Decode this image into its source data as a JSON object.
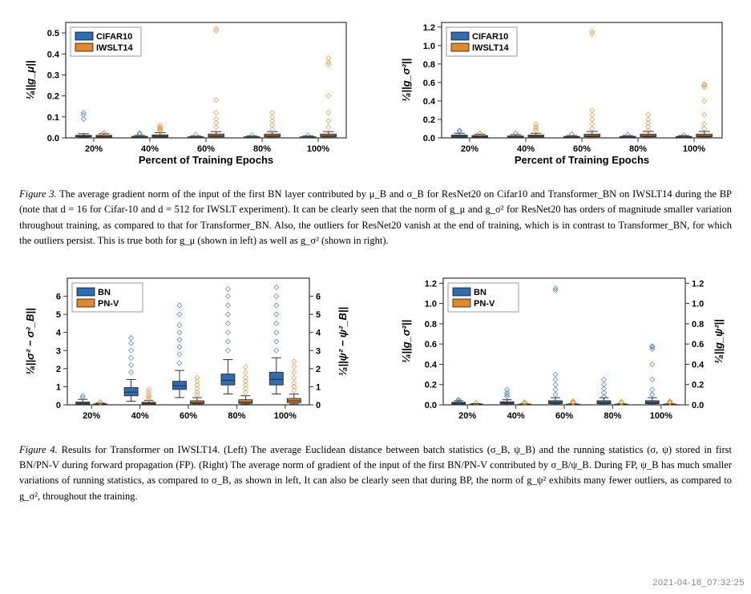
{
  "figure3": {
    "left": {
      "ylabel": "¹⁄ₐ||g_μ||",
      "xlabel": "Percent of Training Epochs",
      "ylim": [
        0,
        0.55
      ],
      "yticks": [
        0.0,
        0.1,
        0.2,
        0.3,
        0.4,
        0.5
      ],
      "categories": [
        "20%",
        "40%",
        "60%",
        "80%",
        "100%"
      ],
      "legend": [
        "CIFAR10",
        "IWSLT14"
      ],
      "colors": {
        "cifar": "#2f6db2",
        "iwslt": "#e08a2c",
        "border": "#333",
        "grid": "#bfbfbf"
      },
      "boxes": {
        "cifar": {
          "medians": [
            0.008,
            0.004,
            0.003,
            0.003,
            0.003
          ],
          "q1": [
            0.005,
            0.002,
            0.002,
            0.002,
            0.002
          ],
          "q3": [
            0.012,
            0.007,
            0.005,
            0.005,
            0.005
          ],
          "wlo": [
            0.002,
            0.001,
            0.001,
            0.001,
            0.001
          ],
          "whi": [
            0.02,
            0.012,
            0.009,
            0.009,
            0.009
          ],
          "out": [
            [
              0.09,
              0.11,
              0.12
            ],
            [
              0.018,
              0.022
            ],
            [
              0.015
            ],
            [
              0.013
            ],
            [
              0.012
            ]
          ]
        },
        "iwslt": {
          "medians": [
            0.007,
            0.008,
            0.01,
            0.01,
            0.01
          ],
          "q1": [
            0.004,
            0.004,
            0.005,
            0.005,
            0.005
          ],
          "q3": [
            0.012,
            0.014,
            0.018,
            0.018,
            0.018
          ],
          "wlo": [
            0.001,
            0.001,
            0.001,
            0.001,
            0.001
          ],
          "whi": [
            0.02,
            0.025,
            0.03,
            0.03,
            0.03
          ],
          "out": [
            [
              0.022,
              0.024
            ],
            [
              0.035,
              0.04,
              0.045,
              0.05,
              0.06
            ],
            [
              0.05,
              0.07,
              0.09,
              0.12,
              0.18,
              0.51,
              0.52
            ],
            [
              0.04,
              0.06,
              0.08,
              0.1,
              0.12
            ],
            [
              0.05,
              0.08,
              0.12,
              0.2,
              0.35,
              0.36,
              0.38
            ]
          ]
        }
      }
    },
    "right": {
      "ylabel": "¹⁄ₐ||g_σ²||",
      "xlabel": "Percent of Training Epochs",
      "ylim": [
        0,
        1.25
      ],
      "yticks": [
        0.0,
        0.2,
        0.4,
        0.6,
        0.8,
        1.0,
        1.2
      ],
      "categories": [
        "20%",
        "40%",
        "60%",
        "80%",
        "100%"
      ],
      "legend": [
        "CIFAR10",
        "IWSLT14"
      ],
      "colors": {
        "cifar": "#2f6db2",
        "iwslt": "#e08a2c",
        "border": "#333",
        "grid": "#bfbfbf"
      },
      "boxes": {
        "cifar": {
          "medians": [
            0.015,
            0.01,
            0.008,
            0.008,
            0.008
          ],
          "q1": [
            0.008,
            0.005,
            0.004,
            0.004,
            0.004
          ],
          "q3": [
            0.03,
            0.02,
            0.015,
            0.015,
            0.015
          ],
          "wlo": [
            0.002,
            0.002,
            0.002,
            0.002,
            0.002
          ],
          "whi": [
            0.05,
            0.035,
            0.025,
            0.025,
            0.025
          ],
          "out": [
            [
              0.08,
              0.07
            ],
            [
              0.05
            ],
            [
              0.04
            ],
            [
              0.035
            ],
            [
              0.03
            ]
          ]
        },
        "iwslt": {
          "medians": [
            0.015,
            0.018,
            0.022,
            0.022,
            0.022
          ],
          "q1": [
            0.008,
            0.01,
            0.012,
            0.012,
            0.012
          ],
          "q3": [
            0.025,
            0.03,
            0.04,
            0.04,
            0.04
          ],
          "wlo": [
            0.002,
            0.002,
            0.002,
            0.002,
            0.002
          ],
          "whi": [
            0.04,
            0.05,
            0.07,
            0.07,
            0.07
          ],
          "out": [
            [
              0.045,
              0.05
            ],
            [
              0.08,
              0.1,
              0.12,
              0.15
            ],
            [
              0.1,
              0.15,
              0.2,
              0.25,
              0.3,
              1.13,
              1.15
            ],
            [
              0.08,
              0.12,
              0.16,
              0.2,
              0.25
            ],
            [
              0.1,
              0.15,
              0.25,
              0.4,
              0.55,
              0.57,
              0.58
            ]
          ]
        }
      }
    },
    "caption_prefix": "Figure 3.",
    "caption": "The average gradient norm of the input of the first BN layer contributed by μ_B and σ_B for ResNet20 on Cifar10 and Transformer_BN on IWSLT14 during the BP (note that d = 16 for Cifar-10 and d = 512 for IWSLT experiment). It can be clearly seen that the norm of g_μ and g_σ² for ResNet20 has orders of magnitude smaller variation throughout training, as compared to that for Transformer_BN. Also, the outliers for ResNet20 vanish at the end of training, which is in contrast to Transformer_BN, for which the outliers persist. This is true both for g_μ (shown in left) as well as g_σ² (shown in right)."
  },
  "figure4": {
    "left": {
      "ylabel_left": "¹⁄ₐ||σ² − σ²_B||",
      "ylabel_right": "¹⁄ₐ||ψ² − ψ²_B||",
      "ylim": [
        0,
        7
      ],
      "yticks": [
        0,
        1,
        2,
        3,
        4,
        5,
        6
      ],
      "categories": [
        "20%",
        "40%",
        "60%",
        "80%",
        "100%"
      ],
      "legend": [
        "BN",
        "PN-V"
      ],
      "colors": {
        "bn": "#2f6db2",
        "pnv": "#e08a2c",
        "border": "#333",
        "grid": "#bfbfbf"
      },
      "boxes": {
        "bn": {
          "medians": [
            0.08,
            0.7,
            1.05,
            1.35,
            1.4
          ],
          "q1": [
            0.04,
            0.5,
            0.85,
            1.1,
            1.1
          ],
          "q3": [
            0.15,
            0.95,
            1.3,
            1.7,
            1.8
          ],
          "wlo": [
            0.01,
            0.2,
            0.4,
            0.6,
            0.6
          ],
          "whi": [
            0.3,
            1.4,
            1.9,
            2.5,
            2.6
          ],
          "out": [
            [
              0.4,
              0.5
            ],
            [
              1.8,
              2.2,
              2.6,
              3.0,
              3.4,
              3.7
            ],
            [
              2.3,
              2.8,
              3.2,
              3.6,
              4.0,
              4.4,
              5.0,
              5.5
            ],
            [
              3.0,
              3.5,
              4.0,
              4.5,
              5.0,
              5.5,
              6.0,
              6.4
            ],
            [
              3.0,
              3.5,
              4.0,
              4.5,
              5.0,
              5.5,
              6.0,
              6.5
            ]
          ]
        },
        "pnv": {
          "medians": [
            0.03,
            0.08,
            0.12,
            0.15,
            0.22
          ],
          "q1": [
            0.015,
            0.04,
            0.06,
            0.08,
            0.12
          ],
          "q3": [
            0.05,
            0.14,
            0.22,
            0.28,
            0.35
          ],
          "wlo": [
            0.005,
            0.01,
            0.02,
            0.03,
            0.05
          ],
          "whi": [
            0.09,
            0.25,
            0.4,
            0.5,
            0.6
          ],
          "out": [
            [
              0.12,
              0.15
            ],
            [
              0.35,
              0.45,
              0.55,
              0.7,
              0.85
            ],
            [
              0.55,
              0.7,
              0.9,
              1.1,
              1.3,
              1.5
            ],
            [
              0.7,
              0.9,
              1.1,
              1.3,
              1.5,
              1.8,
              2.1
            ],
            [
              0.8,
              1.0,
              1.2,
              1.5,
              1.8,
              2.1,
              2.4
            ]
          ]
        }
      }
    },
    "right": {
      "ylabel_left": "¹⁄ₐ||g_σ²||",
      "ylabel_right": "¹⁄ₐ||g_ψ²||",
      "ylim": [
        0,
        1.25
      ],
      "yticks": [
        0.0,
        0.2,
        0.4,
        0.6,
        0.8,
        1.0,
        1.2
      ],
      "categories": [
        "20%",
        "40%",
        "60%",
        "80%",
        "100%"
      ],
      "legend": [
        "BN",
        "PN-V"
      ],
      "colors": {
        "bn": "#2f6db2",
        "pnv": "#e08a2c",
        "border": "#333",
        "grid": "#bfbfbf"
      },
      "boxes": {
        "bn": {
          "medians": [
            0.015,
            0.018,
            0.022,
            0.022,
            0.022
          ],
          "q1": [
            0.008,
            0.01,
            0.012,
            0.012,
            0.012
          ],
          "q3": [
            0.025,
            0.03,
            0.04,
            0.04,
            0.04
          ],
          "wlo": [
            0.002,
            0.002,
            0.002,
            0.002,
            0.002
          ],
          "whi": [
            0.04,
            0.05,
            0.07,
            0.07,
            0.07
          ],
          "out": [
            [
              0.045,
              0.05,
              0.03
            ],
            [
              0.08,
              0.1,
              0.12,
              0.15
            ],
            [
              0.1,
              0.15,
              0.2,
              0.25,
              0.3,
              1.13,
              1.15
            ],
            [
              0.08,
              0.12,
              0.16,
              0.2,
              0.25
            ],
            [
              0.1,
              0.15,
              0.25,
              0.4,
              0.55,
              0.57,
              0.58
            ]
          ]
        },
        "pnv": {
          "medians": [
            0.004,
            0.003,
            0.003,
            0.003,
            0.003
          ],
          "q1": [
            0.002,
            0.0015,
            0.0015,
            0.0015,
            0.0015
          ],
          "q3": [
            0.007,
            0.006,
            0.006,
            0.006,
            0.006
          ],
          "wlo": [
            0.001,
            0.001,
            0.001,
            0.001,
            0.001
          ],
          "whi": [
            0.012,
            0.01,
            0.01,
            0.01,
            0.01
          ],
          "out": [
            [
              0.015,
              0.018
            ],
            [
              0.015,
              0.02,
              0.025
            ],
            [
              0.02,
              0.025,
              0.03,
              0.035
            ],
            [
              0.02,
              0.025,
              0.03
            ],
            [
              0.02,
              0.025,
              0.03,
              0.035
            ]
          ]
        }
      }
    },
    "caption_prefix": "Figure 4.",
    "caption": "Results for Transformer on IWSLT14. (Left) The average Euclidean distance between batch statistics (σ_B, ψ_B) and the running statistics (σ, ψ) stored in first BN/PN-V during forward propagation (FP). (Right) The average norm of gradient of the input of the first BN/PN-V contributed by σ_B/ψ_B. During FP, ψ_B has much smaller variations of running statistics, as compared to σ_B, as shown in left, It can also be clearly seen that during BP, the norm of g_ψ² exhibits many fewer outliers, as compared to g_σ², throughout the training."
  },
  "watermark": "2021-04-18_07:32:25"
}
